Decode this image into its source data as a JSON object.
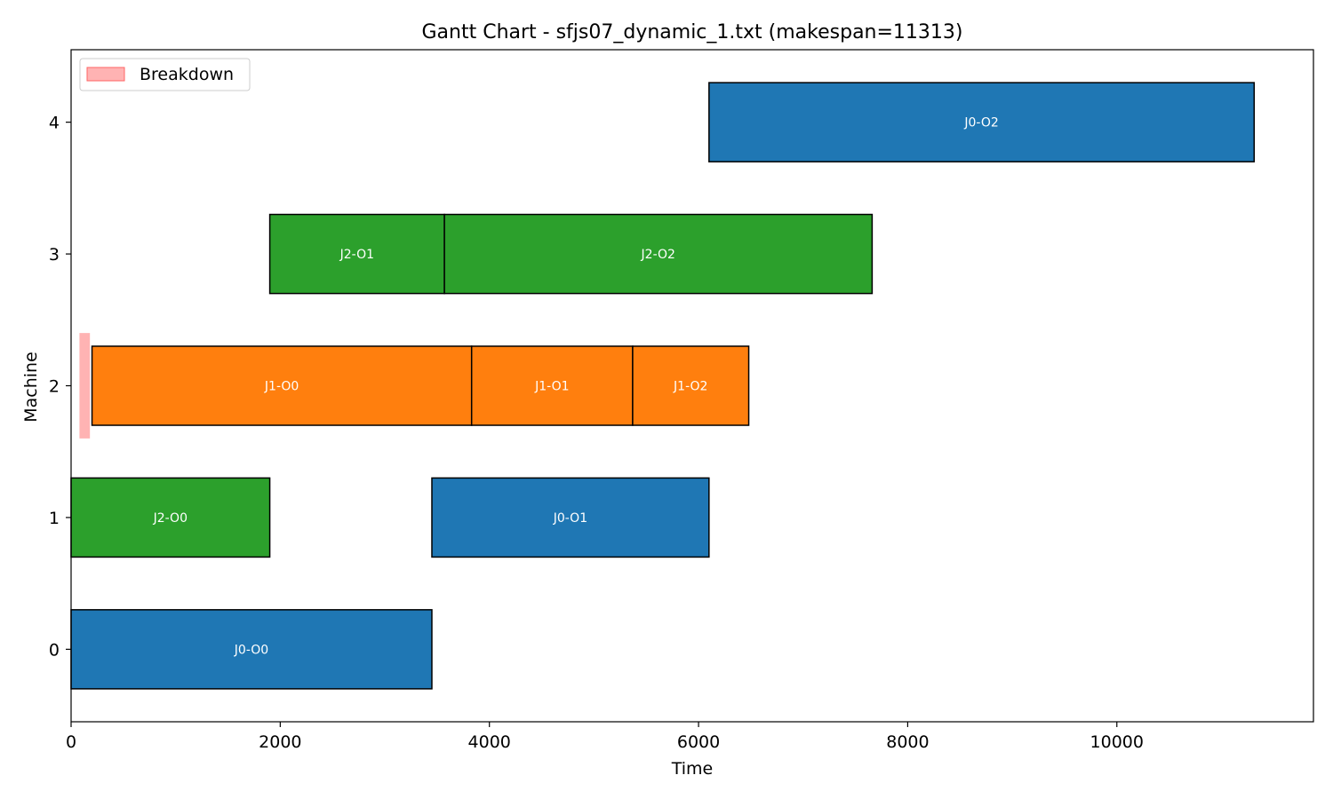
{
  "chart_data": {
    "type": "gantt",
    "title": "Gantt Chart - sfjs07_dynamic_1.txt (makespan=11313)",
    "xlabel": "Time",
    "ylabel": "Machine",
    "xlim": [
      0,
      11880
    ],
    "ylim": [
      -0.55,
      4.55
    ],
    "x_ticks": [
      "0",
      "2000",
      "4000",
      "6000",
      "8000",
      "10000"
    ],
    "x_tick_values": [
      0,
      2000,
      4000,
      6000,
      8000,
      10000
    ],
    "y_ticks": [
      "0",
      "1",
      "2",
      "3",
      "4"
    ],
    "y_tick_values": [
      0,
      1,
      2,
      3,
      4
    ],
    "grid": false,
    "legend": {
      "position": "top-left",
      "entries": [
        {
          "label": "Breakdown",
          "color": "#ff9999"
        }
      ]
    },
    "colors": {
      "J0": "#1f77b4",
      "J1": "#ff7f0e",
      "J2": "#2ca02c",
      "breakdown": "#ff9999",
      "edge": "#000000"
    },
    "operations": [
      {
        "label": "J0-O0",
        "job": "J0",
        "machine": 0,
        "start": 0,
        "end": 3450
      },
      {
        "label": "J2-O0",
        "job": "J2",
        "machine": 1,
        "start": 0,
        "end": 1900
      },
      {
        "label": "J0-O1",
        "job": "J0",
        "machine": 1,
        "start": 3450,
        "end": 6100
      },
      {
        "label": "J1-O0",
        "job": "J1",
        "machine": 2,
        "start": 200,
        "end": 3830
      },
      {
        "label": "J1-O1",
        "job": "J1",
        "machine": 2,
        "start": 3830,
        "end": 5370
      },
      {
        "label": "J1-O2",
        "job": "J1",
        "machine": 2,
        "start": 5370,
        "end": 6480
      },
      {
        "label": "J2-O1",
        "job": "J2",
        "machine": 3,
        "start": 1900,
        "end": 3570
      },
      {
        "label": "J2-O2",
        "job": "J2",
        "machine": 3,
        "start": 3570,
        "end": 7660
      },
      {
        "label": "J0-O2",
        "job": "J0",
        "machine": 4,
        "start": 6100,
        "end": 11313
      }
    ],
    "breakdowns": [
      {
        "machine": 2,
        "start": 80,
        "end": 180
      }
    ]
  }
}
